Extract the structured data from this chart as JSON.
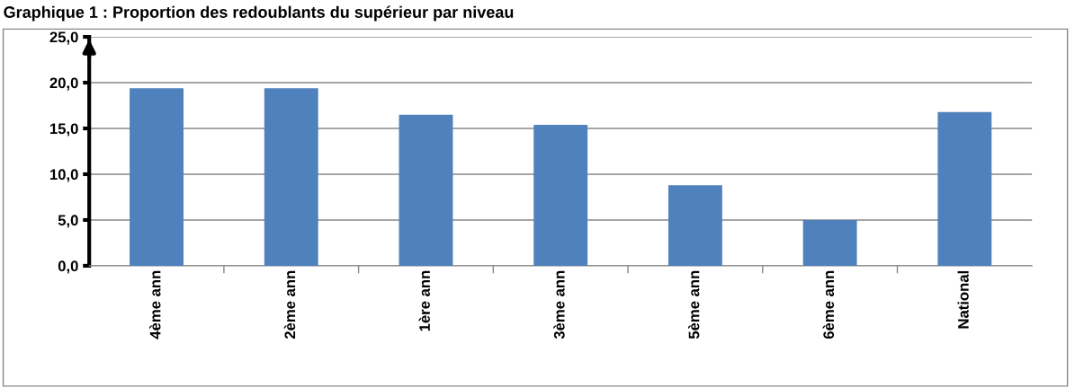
{
  "chart_data": {
    "type": "bar",
    "title": "Graphique 1 : Proportion des redoublants du supérieur par niveau",
    "categories": [
      "4ème ann",
      "2ème ann",
      "1ère ann",
      "3ème ann",
      "5ème ann",
      "6ème ann",
      "National"
    ],
    "values": [
      19.4,
      19.4,
      16.5,
      15.4,
      8.8,
      5.0,
      16.8
    ],
    "color": "#4f81bd",
    "ylim": [
      0,
      25
    ],
    "yticks": [
      {
        "value": 0,
        "label": "0,0"
      },
      {
        "value": 5,
        "label": "5,0"
      },
      {
        "value": 10,
        "label": "10,0"
      },
      {
        "value": 15,
        "label": "15,0"
      },
      {
        "value": 20,
        "label": "20,0"
      },
      {
        "value": 25,
        "label": "25,0"
      }
    ],
    "grid": "y"
  }
}
